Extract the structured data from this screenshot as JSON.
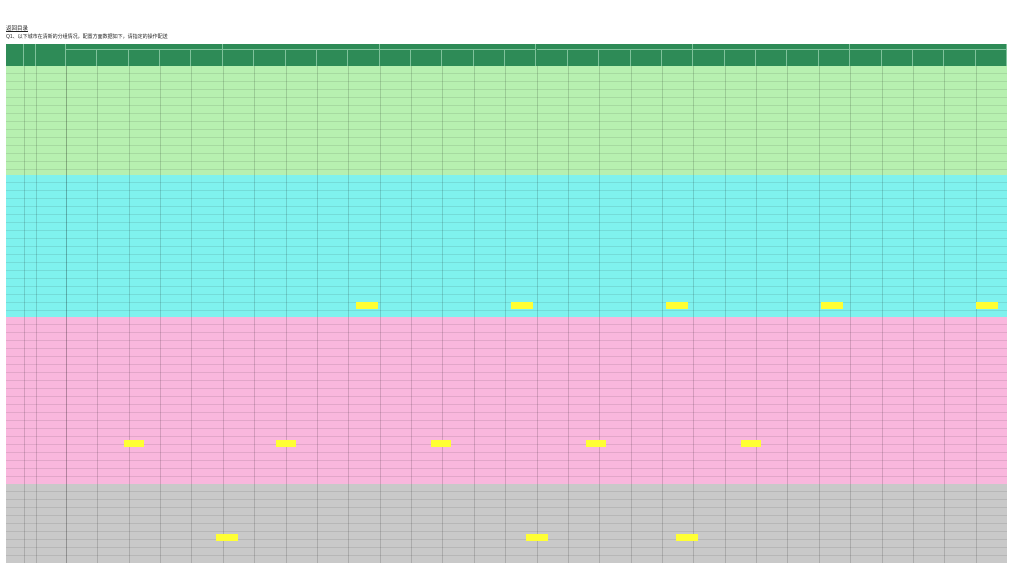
{
  "header_note": "返回目录",
  "question": "Q1、以下城市在清新的分组情况，配置方面数据如下，请指定的操作配送"
}
